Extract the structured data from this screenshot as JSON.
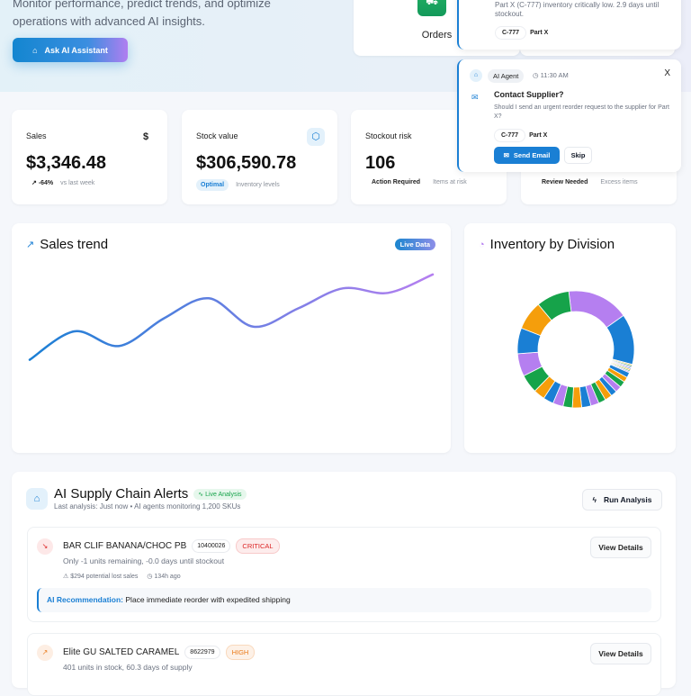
{
  "hero": {
    "subtitle_line1": "Monitor performance, predict trends, and optimize",
    "subtitle_line2": "operations with advanced AI insights.",
    "ask_button": "Ask AI Assistant"
  },
  "orders": {
    "label": "Orders",
    "icon": "truck-icon"
  },
  "notification_1": {
    "text": "Part X (C-777) inventory critically low. 2.9 days until stockout.",
    "chips": [
      "C-777",
      "Part X"
    ]
  },
  "notification_2": {
    "agent": "AI Agent",
    "time": "11:30 AM",
    "close": "X",
    "title": "Contact Supplier?",
    "text": "Should I send an urgent reorder request to the supplier for Part X?",
    "chips": [
      "C-777",
      "Part X"
    ],
    "send": "Send Email",
    "skip": "Skip"
  },
  "kpis": [
    {
      "title": "Sales",
      "value": "$3,346.48",
      "change": "-64%",
      "note": "vs last week",
      "icon": "dollar-icon"
    },
    {
      "title": "Stock value",
      "value": "$306,590.78",
      "badge": "Optimal",
      "note": "Inventory levels",
      "icon": "box-icon"
    },
    {
      "title": "Stockout risk",
      "value": "106",
      "badge": "Action Required",
      "note": "Items at risk"
    },
    {
      "badge": "Review Needed",
      "note": "Excess items"
    }
  ],
  "sales_trend": {
    "title": "Sales trend",
    "badge": "Live Data"
  },
  "inventory": {
    "title": "Inventory by Division"
  },
  "chart_data": [
    {
      "type": "line",
      "title": "Sales trend",
      "values": [
        11,
        48,
        29,
        65,
        91,
        54,
        78,
        104,
        98,
        122
      ],
      "ylim": [
        0,
        130
      ],
      "grid": false,
      "colors": [
        "#1a7fd4",
        "#b57ff0"
      ]
    },
    {
      "type": "pie",
      "title": "Inventory by Division",
      "donut": true,
      "values": [
        60,
        49,
        1.2,
        1.2,
        1.2,
        1.2,
        1.2,
        1.2,
        1.2,
        5,
        5,
        6,
        6,
        6,
        7,
        7,
        8,
        9,
        9,
        9,
        10,
        10,
        11,
        18,
        22,
        25,
        28,
        32
      ],
      "colors": [
        "#b57ff0",
        "#1a7fd4",
        "#f59e0b",
        "#16a34a"
      ]
    }
  ],
  "alerts": {
    "title": "AI Supply Chain Alerts",
    "badge": "Live Analysis",
    "subtitle": "Last analysis: Just now • AI agents monitoring 1,200 SKUs",
    "run": "Run Analysis",
    "items": [
      {
        "name": "BAR CLIF BANANA/CHOC PB",
        "code": "10400026",
        "severity": "CRITICAL",
        "desc": "Only -1 units remaining, -0.0 days until stockout",
        "lost": "$294 potential lost sales",
        "age": "134h ago",
        "rec_label": "AI Recommendation:",
        "rec": "Place immediate reorder with expedited shipping",
        "button": "View Details"
      },
      {
        "name": "Elite GU SALTED CARAMEL",
        "code": "8622979",
        "severity": "HIGH",
        "desc": "401 units in stock, 60.3 days of supply",
        "button": "View Details"
      }
    ]
  }
}
